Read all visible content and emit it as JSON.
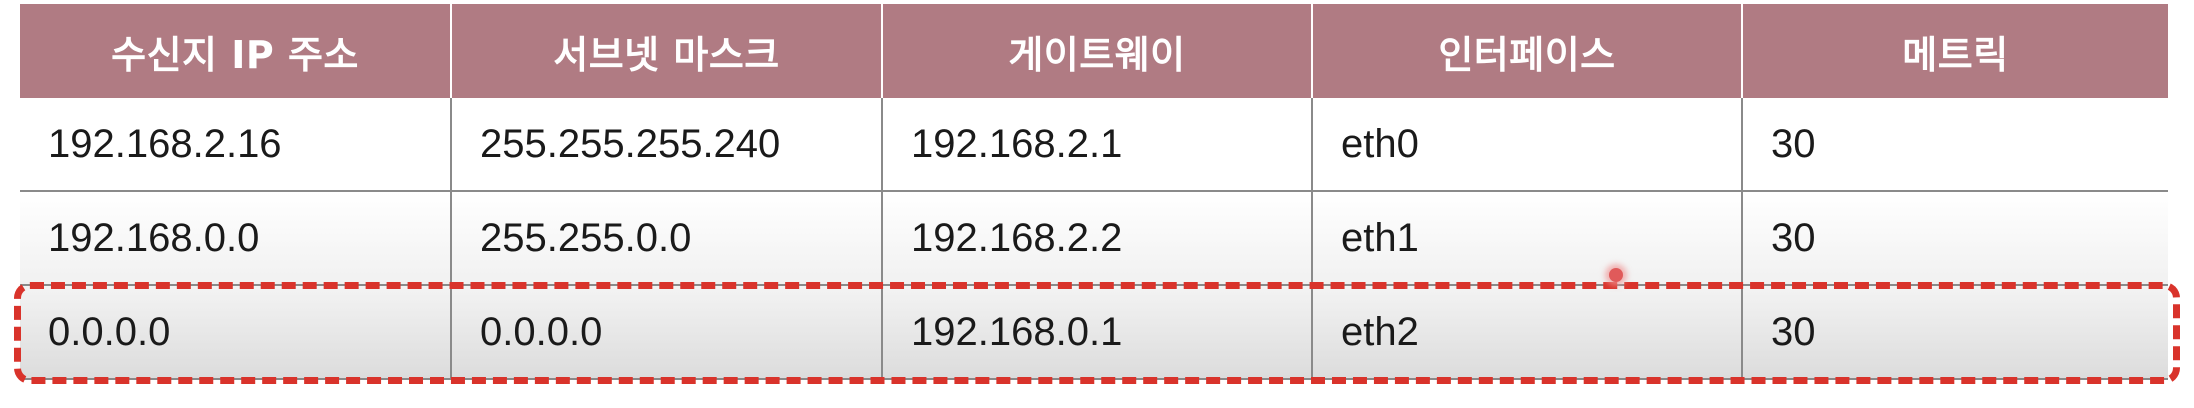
{
  "table": {
    "headers": [
      "수신지 IP 주소",
      "서브넷 마스크",
      "게이트웨이",
      "인터페이스",
      "메트릭"
    ],
    "rows": [
      [
        "192.168.2.16",
        "255.255.255.240",
        "192.168.2.1",
        "eth0",
        "30"
      ],
      [
        "192.168.0.0",
        "255.255.0.0",
        "192.168.2.2",
        "eth1",
        "30"
      ],
      [
        "0.0.0.0",
        "0.0.0.0",
        "192.168.0.1",
        "eth2",
        "30"
      ]
    ],
    "highlighted_row_index": 2,
    "colors": {
      "header_background": "#b07b83",
      "header_text": "#ffffff",
      "highlight_border": "#d9332b"
    }
  }
}
